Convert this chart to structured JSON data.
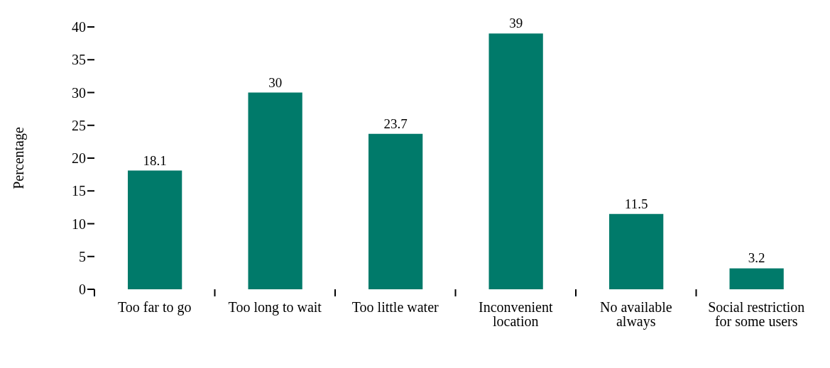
{
  "chart_data": {
    "type": "bar",
    "ylabel": "Percentage",
    "categories": [
      "Too far to go",
      "Too long to wait",
      "Too little water",
      "Inconvenient location",
      "No available always",
      "Social restriction for some users"
    ],
    "values": [
      18.1,
      30,
      23.7,
      39,
      11.5,
      3.2
    ],
    "color": "#007a6a",
    "ylim": [
      0,
      40
    ],
    "yticks": [
      0,
      5,
      10,
      15,
      20,
      25,
      30,
      35,
      40
    ],
    "grid": false,
    "data_labels": true,
    "legend": false
  }
}
